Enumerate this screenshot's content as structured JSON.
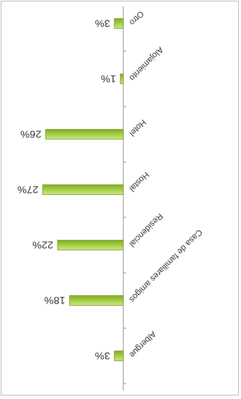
{
  "chart_data": {
    "type": "bar",
    "orientation": "horizontal",
    "rotated": "180deg",
    "categories": [
      "Albergue",
      "Casa de familiares amigos",
      "Residencial",
      "Hostal",
      "Hotel",
      "Alojamiento",
      "Otro"
    ],
    "values": [
      3,
      18,
      22,
      27,
      26,
      1,
      3
    ],
    "value_labels": [
      "3%",
      "18%",
      "22%",
      "27%",
      "26%",
      "1%",
      "3%"
    ],
    "xlim": [
      0,
      30
    ],
    "grid": false,
    "legend": "none",
    "bar_color": "#9ccc3c",
    "bar_edge_color": "#6f9a1c",
    "axis_color": "#8c8c8c"
  }
}
